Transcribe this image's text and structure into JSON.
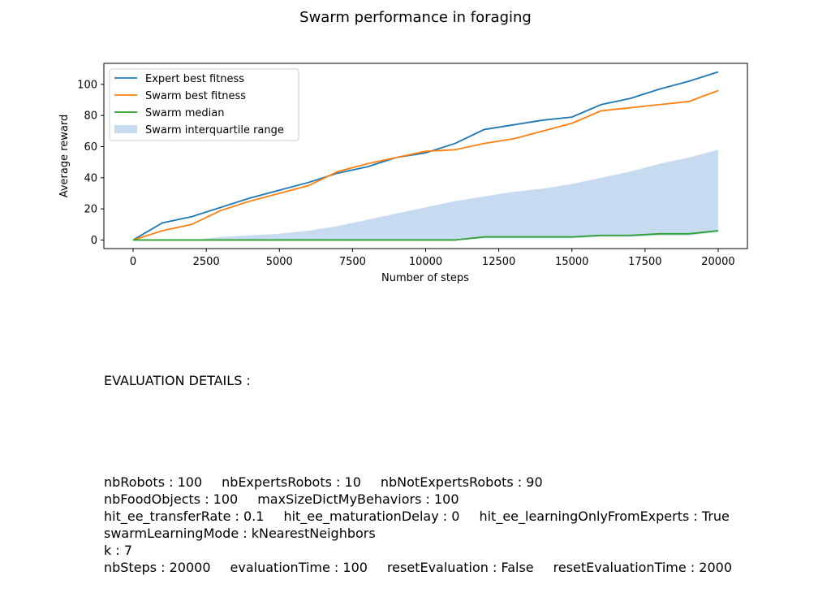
{
  "chart_data": {
    "type": "line",
    "title": "Swarm performance in foraging",
    "xlabel": "Number of steps",
    "ylabel": "Average reward",
    "xlim": [
      -1000,
      21000
    ],
    "ylim": [
      -5.5,
      113.5
    ],
    "xticks": [
      0,
      2500,
      5000,
      7500,
      10000,
      12500,
      15000,
      17500,
      20000
    ],
    "yticks": [
      0,
      20,
      40,
      60,
      80,
      100
    ],
    "grid": false,
    "legend_position": "top-left",
    "series": [
      {
        "name": "Expert best fitness",
        "color": "#1f77b4",
        "x": [
          0,
          1000,
          2000,
          3000,
          4000,
          5000,
          6000,
          7000,
          8000,
          9000,
          10000,
          11000,
          12000,
          13000,
          14000,
          15000,
          16000,
          17000,
          18000,
          19000,
          20000
        ],
        "y": [
          0,
          11,
          15,
          21,
          27,
          32,
          37,
          43,
          47,
          53,
          56,
          62,
          71,
          74,
          77,
          79,
          87,
          91,
          97,
          102,
          108
        ]
      },
      {
        "name": "Swarm best fitness",
        "color": "#ff7f0e",
        "x": [
          0,
          1000,
          2000,
          3000,
          4000,
          5000,
          6000,
          7000,
          8000,
          9000,
          10000,
          11000,
          12000,
          13000,
          14000,
          15000,
          16000,
          17000,
          18000,
          19000,
          20000
        ],
        "y": [
          0,
          6,
          10,
          19,
          25,
          30,
          35,
          44,
          49,
          53,
          57,
          58,
          62,
          65,
          70,
          75,
          83,
          85,
          87,
          89,
          96
        ]
      },
      {
        "name": "Swarm median",
        "color": "#2ca02c",
        "x": [
          0,
          1000,
          2000,
          3000,
          4000,
          5000,
          6000,
          7000,
          8000,
          9000,
          10000,
          11000,
          12000,
          13000,
          14000,
          15000,
          16000,
          17000,
          18000,
          19000,
          20000
        ],
        "y": [
          0,
          0,
          0,
          0,
          0,
          0,
          0,
          0,
          0,
          0,
          0,
          0,
          2,
          2,
          2,
          2,
          3,
          3,
          4,
          4,
          6
        ]
      }
    ],
    "band": {
      "name": "Swarm interquartile range",
      "color": "#c6dbef",
      "x": [
        0,
        1000,
        2000,
        3000,
        4000,
        5000,
        6000,
        7000,
        8000,
        9000,
        10000,
        11000,
        12000,
        13000,
        14000,
        15000,
        16000,
        17000,
        18000,
        19000,
        20000
      ],
      "lower": [
        0,
        0,
        0,
        0,
        0,
        0,
        0,
        0,
        0,
        0,
        0,
        0,
        1,
        1,
        1,
        1,
        2,
        2,
        3,
        3,
        5
      ],
      "upper": [
        0,
        0,
        0,
        2,
        3,
        4,
        6,
        9,
        13,
        17,
        21,
        25,
        28,
        31,
        33,
        36,
        40,
        44,
        49,
        53,
        58
      ]
    }
  },
  "details": {
    "heading": "EVALUATION DETAILS :",
    "lines": [
      [
        "nbRobots : 100",
        "nbExpertsRobots : 10",
        "nbNotExpertsRobots : 90"
      ],
      [
        "nbFoodObjects : 100",
        "maxSizeDictMyBehaviors : 100"
      ],
      [
        "hit_ee_transferRate : 0.1",
        "hit_ee_maturationDelay : 0",
        "hit_ee_learningOnlyFromExperts : True"
      ],
      [
        "swarmLearningMode : kNearestNeighbors"
      ],
      [
        "k : 7"
      ],
      [
        "nbSteps : 20000",
        "evaluationTime : 100",
        "resetEvaluation : False",
        "resetEvaluationTime : 2000"
      ]
    ]
  }
}
